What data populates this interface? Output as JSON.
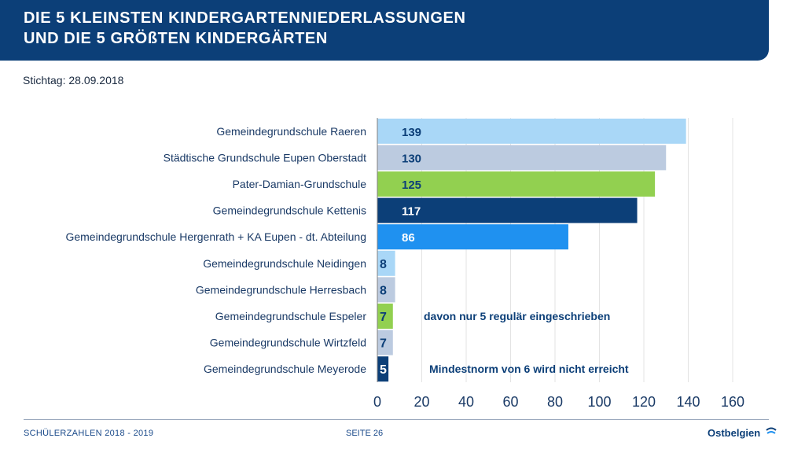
{
  "header": {
    "title_line1": "DIE 5 KLEINSTEN KINDERGARTENNIEDERLASSUNGEN",
    "title_line2": "UND DIE 5 GRÖßTEN KINDERGÄRTEN"
  },
  "stichtag": "Stichtag: 28.09.2018",
  "footer": {
    "left": "SCHÜLERZAHLEN 2018 - 2019",
    "page": "SEITE 26",
    "logo": "Ostbelgien"
  },
  "chart_data": {
    "type": "bar",
    "orientation": "horizontal",
    "categories": [
      "Gemeindegrundschule Raeren",
      "Städtische Grundschule Eupen Oberstadt",
      "Pater-Damian-Grundschule",
      "Gemeindegrundschule Kettenis",
      "Gemeindegrundschule Hergenrath + KA Eupen - dt. Abteilung",
      "Gemeindegrundschule Neidingen",
      "Gemeindegrundschule Herresbach",
      "Gemeindegrundschule Espeler",
      "Gemeindegrundschule Wirtzfeld",
      "Gemeindegrundschule Meyerode"
    ],
    "values": [
      139,
      130,
      125,
      117,
      86,
      8,
      8,
      7,
      7,
      5
    ],
    "colors": [
      "#a9d7f7",
      "#bccbe0",
      "#92d050",
      "#0c3f78",
      "#1f91f0",
      "#a9d7f7",
      "#bccbe0",
      "#92d050",
      "#bccbe0",
      "#0c3f78"
    ],
    "label_colors": [
      "#0c3f78",
      "#0c3f78",
      "#0c3f78",
      "#ffffff",
      "#ffffff",
      "#0c3f78",
      "#0c3f78",
      "#0c3f78",
      "#0c3f78",
      "#ffffff"
    ],
    "xlim": [
      0,
      160
    ],
    "xticks": [
      0,
      20,
      40,
      60,
      80,
      100,
      120,
      140,
      160
    ],
    "grid": true,
    "annotations": [
      {
        "text": "davon nur 5 regulär eingeschrieben",
        "category_index": 7,
        "color": "#0c3f78"
      },
      {
        "text": "Mindestnorm von 6 wird nicht erreicht",
        "category_index": 9,
        "color": "#0c3f78"
      }
    ]
  }
}
